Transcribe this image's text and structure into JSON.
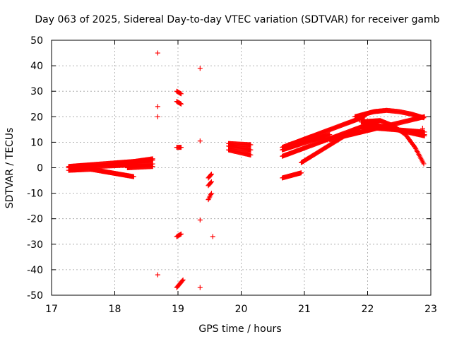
{
  "chart_data": {
    "type": "scatter",
    "title": "Day 063 of 2025, Sidereal Day-to-day VTEC variation (SDTVAR) for receiver gamb",
    "xlabel": "GPS time / hours",
    "ylabel": "SDTVAR / TECUs",
    "xlim": [
      17,
      23
    ],
    "ylim": [
      -50,
      50
    ],
    "x_ticks": [
      "17",
      "18",
      "19",
      "20",
      "21",
      "22",
      "23"
    ],
    "y_ticks": [
      "50",
      "40",
      "30",
      "20",
      "10",
      "0",
      "-10",
      "-20",
      "-30",
      "-40",
      "-50"
    ],
    "grid": true,
    "marker": "+",
    "color": "#ff0000",
    "segments": [
      {
        "x0": 17.27,
        "x1": 18.6,
        "y0": 0.5,
        "y1": 3.0
      },
      {
        "x0": 17.27,
        "x1": 18.6,
        "y0": 0.0,
        "y1": 1.5
      },
      {
        "x0": 17.27,
        "x1": 17.7,
        "y0": -1.0,
        "y1": -0.5
      },
      {
        "x0": 17.6,
        "x1": 18.3,
        "y0": -0.5,
        "y1": -3.5
      },
      {
        "x0": 17.9,
        "x1": 18.6,
        "y0": 1.0,
        "y1": 3.5
      },
      {
        "x0": 18.2,
        "x1": 18.6,
        "y0": 0.0,
        "y1": 0.5
      },
      {
        "x0": 18.98,
        "x1": 19.05,
        "y0": 30.0,
        "y1": 29.0
      },
      {
        "x0": 18.98,
        "x1": 19.05,
        "y0": 26.0,
        "y1": 25.0
      },
      {
        "x0": 18.98,
        "x1": 19.05,
        "y0": 8.0,
        "y1": 8.0
      },
      {
        "x0": 18.98,
        "x1": 19.05,
        "y0": -27.0,
        "y1": -26.0
      },
      {
        "x0": 18.98,
        "x1": 19.08,
        "y0": -47.0,
        "y1": -44.0
      },
      {
        "x0": 19.48,
        "x1": 19.53,
        "y0": -4.0,
        "y1": -2.5
      },
      {
        "x0": 19.48,
        "x1": 19.53,
        "y0": -7.0,
        "y1": -5.5
      },
      {
        "x0": 19.48,
        "x1": 19.53,
        "y0": -12.5,
        "y1": -10.0
      },
      {
        "x0": 19.8,
        "x1": 20.15,
        "y0": 9.5,
        "y1": 9.0
      },
      {
        "x0": 19.8,
        "x1": 20.15,
        "y0": 8.5,
        "y1": 7.0
      },
      {
        "x0": 19.8,
        "x1": 20.15,
        "y0": 7.0,
        "y1": 5.0
      },
      {
        "x0": 20.65,
        "x1": 21.95,
        "y0": 8.0,
        "y1": 20.0
      },
      {
        "x0": 20.65,
        "x1": 21.4,
        "y0": 7.0,
        "y1": 13.0
      },
      {
        "x0": 20.65,
        "x1": 21.9,
        "y0": 4.5,
        "y1": 16.0
      },
      {
        "x0": 20.65,
        "x1": 20.95,
        "y0": -4.0,
        "y1": -2.0
      },
      {
        "x0": 20.95,
        "x1": 21.8,
        "y0": 2.0,
        "y1": 15.0
      },
      {
        "x0": 21.4,
        "x1": 22.9,
        "y0": 11.0,
        "y1": 20.0
      },
      {
        "x0": 21.9,
        "x1": 22.9,
        "y0": 16.0,
        "y1": 14.0
      },
      {
        "x0": 21.9,
        "x1": 22.9,
        "y0": 18.0,
        "y1": 12.5
      }
    ],
    "curves": [
      {
        "x": [
          21.8,
          22.1,
          22.3,
          22.5,
          22.7,
          22.9
        ],
        "y": [
          20.0,
          22.0,
          22.5,
          22.0,
          21.0,
          19.5
        ]
      },
      {
        "x": [
          21.9,
          22.2,
          22.4,
          22.6,
          22.75,
          22.9
        ],
        "y": [
          18.0,
          18.5,
          16.5,
          13.0,
          8.0,
          1.0
        ]
      }
    ],
    "points": [
      {
        "x": 18.68,
        "y": 45.0
      },
      {
        "x": 18.68,
        "y": 24.0
      },
      {
        "x": 18.68,
        "y": 20.0
      },
      {
        "x": 18.68,
        "y": -42.0
      },
      {
        "x": 19.35,
        "y": 39.0
      },
      {
        "x": 19.35,
        "y": 10.5
      },
      {
        "x": 19.35,
        "y": -20.5
      },
      {
        "x": 19.35,
        "y": -47.0
      },
      {
        "x": 19.55,
        "y": -27.0
      },
      {
        "x": 22.87,
        "y": 15.5
      },
      {
        "x": 22.9,
        "y": 13.0
      }
    ]
  }
}
